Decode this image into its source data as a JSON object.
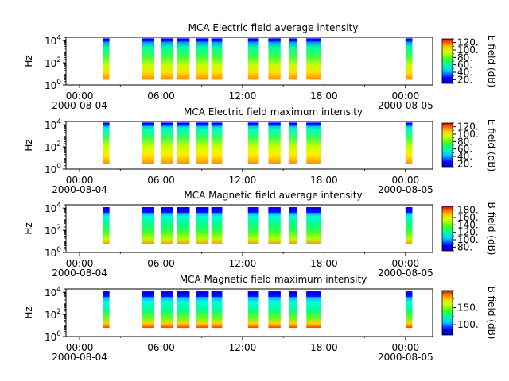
{
  "chart_data": [
    {
      "type": "heatmap",
      "title": "MCA  Electric field average intensity",
      "ylabel": "Hz",
      "yscale": "log",
      "ylim": [
        1,
        20000
      ],
      "y_ticks": [
        {
          "base": "10",
          "exp": "0"
        },
        {
          "base": "10",
          "exp": "2"
        },
        {
          "base": "10",
          "exp": "4"
        }
      ],
      "x_ticks": [
        {
          "time": "00:00",
          "date": "2000-08-04"
        },
        {
          "time": "06:00",
          "date": ""
        },
        {
          "time": "12:00",
          "date": ""
        },
        {
          "time": "18:00",
          "date": ""
        },
        {
          "time": "00:00",
          "date": "2000-08-05"
        }
      ],
      "xlim_hours": [
        -1,
        26
      ],
      "colorbar": {
        "label": "E field (dB)",
        "range": [
          10,
          130
        ],
        "ticks": [
          "20.",
          "40.",
          "60.",
          "80.",
          "100.",
          "120."
        ],
        "tick_values": [
          20,
          40,
          60,
          80,
          100,
          120
        ]
      },
      "field": "E",
      "mode": "avg",
      "data_segments_hours": [
        [
          1.7,
          2.2
        ],
        [
          4.6,
          5.5
        ],
        [
          6.0,
          6.9
        ],
        [
          7.2,
          8.1
        ],
        [
          8.6,
          9.5
        ],
        [
          9.7,
          10.5
        ],
        [
          12.4,
          13.2
        ],
        [
          13.9,
          14.8
        ],
        [
          15.4,
          16.0
        ],
        [
          16.7,
          17.8
        ],
        [
          24.0,
          24.5
        ]
      ]
    },
    {
      "type": "heatmap",
      "title": "MCA  Electric field maximum intensity",
      "ylabel": "Hz",
      "yscale": "log",
      "ylim": [
        1,
        20000
      ],
      "y_ticks": [
        {
          "base": "10",
          "exp": "0"
        },
        {
          "base": "10",
          "exp": "2"
        },
        {
          "base": "10",
          "exp": "4"
        }
      ],
      "x_ticks": [
        {
          "time": "00:00",
          "date": "2000-08-04"
        },
        {
          "time": "06:00",
          "date": ""
        },
        {
          "time": "12:00",
          "date": ""
        },
        {
          "time": "18:00",
          "date": ""
        },
        {
          "time": "00:00",
          "date": "2000-08-05"
        }
      ],
      "xlim_hours": [
        -1,
        26
      ],
      "colorbar": {
        "label": "E field (dB)",
        "range": [
          10,
          130
        ],
        "ticks": [
          "20.",
          "40.",
          "60.",
          "80.",
          "100.",
          "120."
        ],
        "tick_values": [
          20,
          40,
          60,
          80,
          100,
          120
        ]
      },
      "field": "E",
      "mode": "max",
      "data_segments_hours": [
        [
          1.7,
          2.2
        ],
        [
          4.6,
          5.5
        ],
        [
          6.0,
          6.9
        ],
        [
          7.2,
          8.1
        ],
        [
          8.6,
          9.5
        ],
        [
          9.7,
          10.5
        ],
        [
          12.4,
          13.2
        ],
        [
          13.9,
          14.8
        ],
        [
          15.4,
          16.0
        ],
        [
          16.7,
          17.8
        ],
        [
          24.0,
          24.5
        ]
      ]
    },
    {
      "type": "heatmap",
      "title": "MCA  Magnetic field average intensity",
      "ylabel": "Hz",
      "yscale": "log",
      "ylim": [
        1,
        20000
      ],
      "y_ticks": [
        {
          "base": "10",
          "exp": "0"
        },
        {
          "base": "10",
          "exp": "2"
        },
        {
          "base": "10",
          "exp": "4"
        }
      ],
      "x_ticks": [
        {
          "time": "00:00",
          "date": "2000-08-04"
        },
        {
          "time": "06:00",
          "date": ""
        },
        {
          "time": "12:00",
          "date": ""
        },
        {
          "time": "18:00",
          "date": ""
        },
        {
          "time": "00:00",
          "date": "2000-08-05"
        }
      ],
      "xlim_hours": [
        -1,
        26
      ],
      "colorbar": {
        "label": "B field (dB)",
        "range": [
          70,
          190
        ],
        "ticks": [
          "80.",
          "100.",
          "120.",
          "140.",
          "160.",
          "180."
        ],
        "tick_values": [
          80,
          100,
          120,
          140,
          160,
          180
        ]
      },
      "field": "B",
      "mode": "avg",
      "data_segments_hours": [
        [
          1.7,
          2.2
        ],
        [
          4.6,
          5.5
        ],
        [
          6.0,
          6.9
        ],
        [
          7.2,
          8.1
        ],
        [
          8.6,
          9.5
        ],
        [
          9.7,
          10.5
        ],
        [
          12.4,
          13.2
        ],
        [
          13.9,
          14.8
        ],
        [
          15.4,
          16.0
        ],
        [
          16.7,
          17.8
        ],
        [
          24.0,
          24.5
        ]
      ]
    },
    {
      "type": "heatmap",
      "title": "MCA  Magnetic field maximum intensity",
      "ylabel": "Hz",
      "yscale": "log",
      "ylim": [
        1,
        20000
      ],
      "y_ticks": [
        {
          "base": "10",
          "exp": "0"
        },
        {
          "base": "10",
          "exp": "2"
        },
        {
          "base": "10",
          "exp": "4"
        }
      ],
      "x_ticks": [
        {
          "time": "00:00",
          "date": "2000-08-04"
        },
        {
          "time": "06:00",
          "date": ""
        },
        {
          "time": "12:00",
          "date": ""
        },
        {
          "time": "18:00",
          "date": ""
        },
        {
          "time": "00:00",
          "date": "2000-08-05"
        }
      ],
      "xlim_hours": [
        -1,
        26
      ],
      "colorbar": {
        "label": "B field (dB)",
        "range": [
          70,
          200
        ],
        "ticks": [
          "100.",
          "150."
        ],
        "tick_values": [
          100,
          150
        ]
      },
      "field": "B",
      "mode": "max",
      "data_segments_hours": [
        [
          1.7,
          2.2
        ],
        [
          4.6,
          5.5
        ],
        [
          6.0,
          6.9
        ],
        [
          7.2,
          8.1
        ],
        [
          8.6,
          9.5
        ],
        [
          9.7,
          10.5
        ],
        [
          12.4,
          13.2
        ],
        [
          13.9,
          14.8
        ],
        [
          15.4,
          16.0
        ],
        [
          16.7,
          17.8
        ],
        [
          24.0,
          24.5
        ]
      ]
    }
  ]
}
